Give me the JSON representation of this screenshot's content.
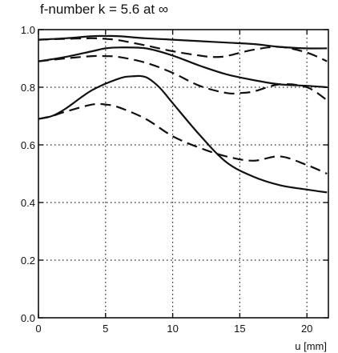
{
  "chart_data": {
    "type": "line",
    "title": "f-number k = 5.6 at ∞",
    "xlabel": "u [mm]",
    "ylabel": "",
    "xlim": [
      0,
      21.6
    ],
    "ylim": [
      0,
      1.0
    ],
    "x_ticks": [
      0,
      5,
      10,
      15,
      20
    ],
    "y_ticks": [
      0.0,
      0.2,
      0.4,
      0.6,
      0.8,
      1.0
    ],
    "x_tick_labels": [
      "0",
      "5",
      "10",
      "15",
      "20"
    ],
    "y_tick_labels": [
      "0.0",
      "0.2",
      "0.4",
      "0.6",
      "0.8",
      "1.0"
    ],
    "grid": "dotted",
    "legend": "none",
    "series": [
      {
        "style": "solid",
        "x": [
          0,
          2,
          4,
          5,
          6,
          8,
          10,
          12,
          14,
          16,
          18,
          20,
          21.5
        ],
        "y": [
          0.965,
          0.97,
          0.977,
          0.978,
          0.977,
          0.97,
          0.965,
          0.96,
          0.955,
          0.95,
          0.94,
          0.935,
          0.935
        ]
      },
      {
        "style": "dashed",
        "x": [
          0,
          2,
          4,
          5,
          6,
          8,
          10,
          12,
          13,
          14,
          16,
          18,
          20,
          21.5
        ],
        "y": [
          0.965,
          0.968,
          0.97,
          0.968,
          0.963,
          0.945,
          0.925,
          0.91,
          0.905,
          0.908,
          0.93,
          0.94,
          0.92,
          0.89
        ]
      },
      {
        "style": "solid",
        "x": [
          0,
          2,
          4,
          5,
          6,
          8,
          10,
          12,
          14,
          16,
          18,
          20,
          21.5
        ],
        "y": [
          0.89,
          0.905,
          0.925,
          0.935,
          0.938,
          0.935,
          0.91,
          0.875,
          0.845,
          0.825,
          0.81,
          0.805,
          0.8
        ]
      },
      {
        "style": "dashed",
        "x": [
          0,
          2,
          4,
          5,
          6,
          8,
          10,
          12,
          14,
          15,
          16,
          18,
          20,
          21.5
        ],
        "y": [
          0.89,
          0.9,
          0.908,
          0.908,
          0.905,
          0.885,
          0.85,
          0.805,
          0.78,
          0.78,
          0.785,
          0.81,
          0.8,
          0.755
        ]
      },
      {
        "style": "solid",
        "x": [
          0,
          1,
          2,
          4,
          6,
          7,
          8,
          9,
          10,
          12,
          14,
          16,
          18,
          20,
          21.5
        ],
        "y": [
          0.69,
          0.7,
          0.725,
          0.79,
          0.83,
          0.838,
          0.835,
          0.8,
          0.745,
          0.635,
          0.54,
          0.49,
          0.46,
          0.445,
          0.435
        ]
      },
      {
        "style": "dashed",
        "x": [
          0,
          1,
          2,
          4,
          5,
          6,
          8,
          10,
          12,
          14,
          16,
          18,
          20,
          21.5
        ],
        "y": [
          0.69,
          0.7,
          0.715,
          0.74,
          0.74,
          0.73,
          0.69,
          0.63,
          0.59,
          0.56,
          0.545,
          0.56,
          0.53,
          0.5
        ]
      }
    ]
  }
}
